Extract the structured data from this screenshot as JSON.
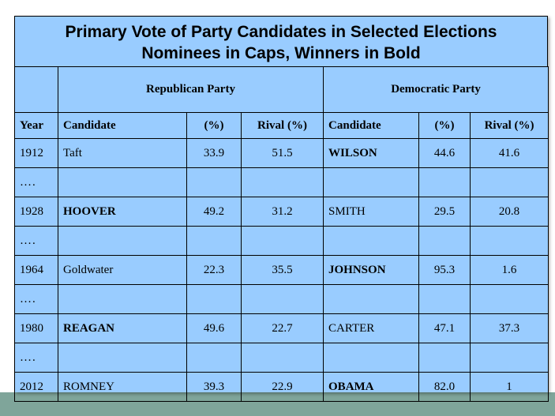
{
  "title": {
    "line1": "Primary Vote of Party Candidates in Selected Elections",
    "line2": "Nominees in Caps, Winners in Bold"
  },
  "parties": {
    "republican": "Republican Party",
    "democratic": "Democratic Party"
  },
  "columns": [
    "Year",
    "Candidate",
    "(%)",
    "Rival (%)",
    "Candidate",
    "(%)",
    "Rival (%)"
  ],
  "rows": [
    {
      "year": "1912",
      "rep_candidate": "Taft",
      "rep_bold": false,
      "rep_pct": "33.9",
      "rep_rival": "51.5",
      "dem_candidate": "WILSON",
      "dem_bold": true,
      "dem_pct": "44.6",
      "dem_rival": "41.6"
    },
    {
      "gap": "…."
    },
    {
      "year": "1928",
      "rep_candidate": "HOOVER",
      "rep_bold": true,
      "rep_pct": "49.2",
      "rep_rival": "31.2",
      "dem_candidate": "SMITH",
      "dem_bold": false,
      "dem_pct": "29.5",
      "dem_rival": "20.8"
    },
    {
      "gap": "…."
    },
    {
      "year": "1964",
      "rep_candidate": "Goldwater",
      "rep_bold": false,
      "rep_pct": "22.3",
      "rep_rival": "35.5",
      "dem_candidate": "JOHNSON",
      "dem_bold": true,
      "dem_pct": "95.3",
      "dem_rival": "1.6"
    },
    {
      "gap": "…."
    },
    {
      "year": "1980",
      "rep_candidate": "REAGAN",
      "rep_bold": true,
      "rep_pct": "49.6",
      "rep_rival": "22.7",
      "dem_candidate": "CARTER",
      "dem_bold": false,
      "dem_pct": "47.1",
      "dem_rival": "37.3"
    },
    {
      "gap": "…."
    },
    {
      "year": "2012",
      "rep_candidate": "ROMNEY",
      "rep_bold": false,
      "rep_pct": "39.3",
      "rep_rival": "22.9",
      "dem_candidate": "OBAMA",
      "dem_bold": true,
      "dem_pct": "82.0",
      "dem_rival": "1"
    }
  ]
}
